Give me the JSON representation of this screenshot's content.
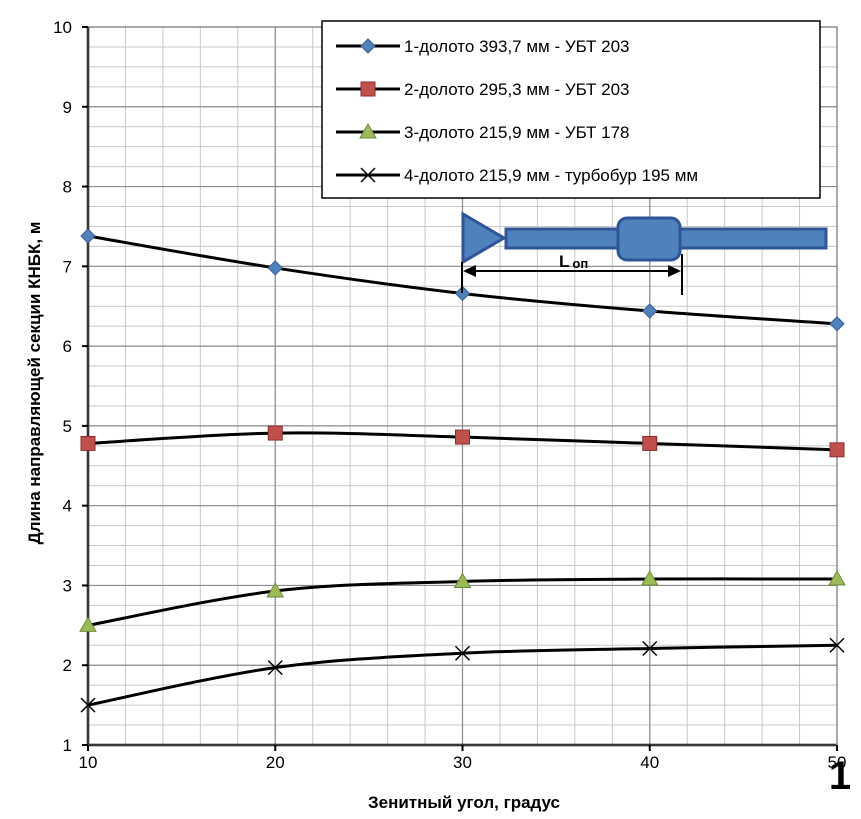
{
  "chart_data": {
    "type": "line",
    "xlabel": "Зенитный угол, градус",
    "ylabel": "Длина направляющей секции КНБК, м",
    "xlim": [
      10,
      50
    ],
    "ylim": [
      1,
      10
    ],
    "x_ticks": [
      "10",
      "20",
      "30",
      "40",
      "50"
    ],
    "y_ticks": [
      "1",
      "2",
      "3",
      "4",
      "5",
      "6",
      "7",
      "8",
      "9",
      "10"
    ],
    "grid": true,
    "legend_position": "top-right",
    "x": [
      10,
      20,
      30,
      40,
      50
    ],
    "series": [
      {
        "name": "1-долото 393,7 мм - УБТ 203",
        "marker": "diamond",
        "color": "#4f81bd",
        "values": [
          7.38,
          6.98,
          6.66,
          6.44,
          6.28
        ]
      },
      {
        "name": "2-долото 295,3 мм - УБТ 203",
        "marker": "square",
        "color": "#c0504d",
        "values": [
          4.78,
          4.91,
          4.86,
          4.78,
          4.7
        ]
      },
      {
        "name": "3-долото 215,9 мм - УБТ 178",
        "marker": "triangle",
        "color": "#9bbb59",
        "values": [
          2.5,
          2.93,
          3.05,
          3.08,
          3.08
        ]
      },
      {
        "name": "4-долото 215,9 мм - турбобур 195 мм",
        "marker": "x",
        "color": "#000000",
        "values": [
          1.5,
          1.97,
          2.15,
          2.21,
          2.25
        ]
      }
    ],
    "annotation": {
      "label_main": "L",
      "label_sub": "оп"
    },
    "corner_label": "1"
  }
}
